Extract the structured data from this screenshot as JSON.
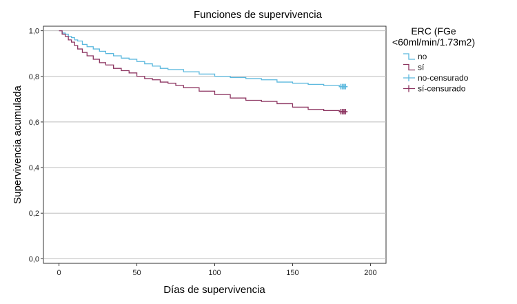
{
  "chart_data": {
    "type": "line",
    "title": "Funciones de supervivencia",
    "xlabel": "Días de supervivencia",
    "ylabel": "Supervivencia acumulada",
    "xlim": [
      -10,
      210
    ],
    "ylim": [
      -0.02,
      1.02
    ],
    "x_ticks": [
      0,
      50,
      100,
      150,
      200
    ],
    "x_tick_labels": [
      "0",
      "50",
      "100",
      "150",
      "200"
    ],
    "y_ticks": [
      0.0,
      0.2,
      0.4,
      0.6,
      0.8,
      1.0
    ],
    "y_tick_labels": [
      "0,0",
      "0,2",
      "0,4",
      "0,6",
      "0,8",
      "1,0"
    ],
    "grid": "horizontal",
    "legend": {
      "position": "right",
      "title_line1": "ERC (FGe",
      "title_line2": "<60ml/min/1.73m2)",
      "entries": [
        "no",
        "sí",
        "no-censurado",
        "sí-censurado"
      ]
    },
    "series": [
      {
        "name": "no",
        "color": "#5bb8de",
        "step": true,
        "x": [
          0,
          2,
          4,
          6,
          8,
          10,
          12,
          15,
          18,
          22,
          26,
          30,
          35,
          40,
          45,
          50,
          55,
          60,
          65,
          70,
          80,
          90,
          100,
          110,
          120,
          130,
          140,
          150,
          160,
          170,
          180,
          183
        ],
        "y": [
          1.0,
          0.99,
          0.985,
          0.975,
          0.97,
          0.96,
          0.955,
          0.94,
          0.93,
          0.92,
          0.91,
          0.9,
          0.89,
          0.88,
          0.875,
          0.865,
          0.855,
          0.845,
          0.835,
          0.83,
          0.82,
          0.81,
          0.8,
          0.795,
          0.79,
          0.785,
          0.775,
          0.77,
          0.765,
          0.76,
          0.755,
          0.755
        ]
      },
      {
        "name": "sí",
        "color": "#8c3460",
        "step": true,
        "x": [
          0,
          2,
          4,
          6,
          8,
          10,
          12,
          15,
          18,
          22,
          26,
          30,
          35,
          40,
          45,
          50,
          55,
          60,
          65,
          70,
          75,
          80,
          90,
          100,
          110,
          120,
          130,
          140,
          150,
          160,
          170,
          180,
          183
        ],
        "y": [
          1.0,
          0.985,
          0.975,
          0.96,
          0.95,
          0.935,
          0.92,
          0.905,
          0.89,
          0.875,
          0.86,
          0.85,
          0.835,
          0.825,
          0.815,
          0.8,
          0.79,
          0.785,
          0.775,
          0.77,
          0.76,
          0.75,
          0.735,
          0.72,
          0.705,
          0.695,
          0.69,
          0.68,
          0.665,
          0.655,
          0.65,
          0.645,
          0.645
        ]
      }
    ],
    "censored": [
      {
        "name": "no-censurado",
        "color": "#5bb8de",
        "x": [
          181,
          182,
          183,
          184
        ],
        "y": [
          0.755,
          0.755,
          0.755,
          0.755
        ]
      },
      {
        "name": "sí-censurado",
        "color": "#8c3460",
        "x": [
          181,
          182,
          183,
          184
        ],
        "y": [
          0.645,
          0.645,
          0.645,
          0.645
        ]
      }
    ]
  }
}
